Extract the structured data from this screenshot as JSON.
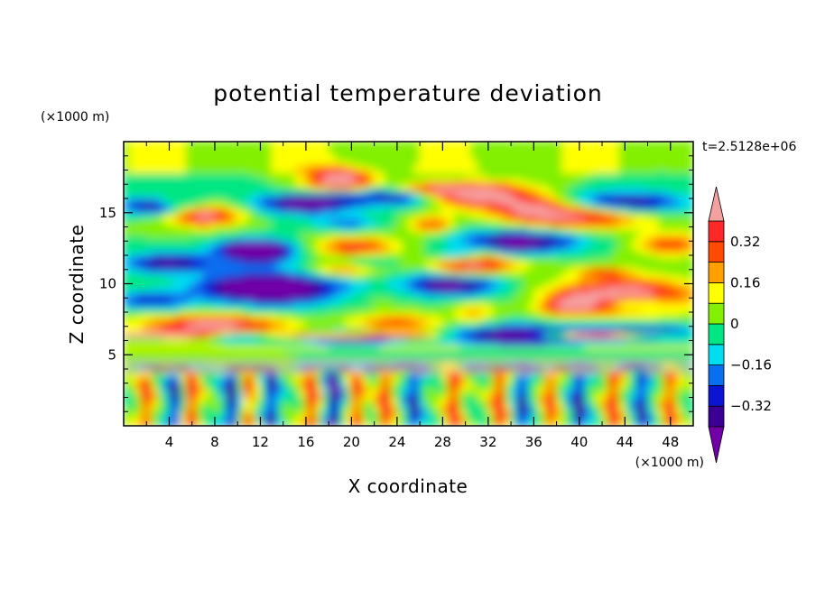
{
  "chart_data": {
    "type": "heatmap",
    "title": "potential temperature deviation",
    "xlabel": "X coordinate",
    "ylabel": "Z coordinate",
    "x_units": "(×1000 m)",
    "y_units": "(×1000 m)",
    "time_label": "t=2.5128e+06",
    "xlim": [
      0,
      50
    ],
    "ylim": [
      0,
      20
    ],
    "x_ticks": [
      "4",
      "8",
      "12",
      "16",
      "20",
      "24",
      "28",
      "32",
      "36",
      "40",
      "44",
      "48"
    ],
    "y_ticks": [
      "5",
      "10",
      "15"
    ],
    "colorbar": {
      "levels": [
        -0.4,
        -0.32,
        -0.24,
        -0.16,
        -0.08,
        0,
        0.08,
        0.16,
        0.24,
        0.32,
        0.4
      ],
      "labels": [
        "0.32",
        "0.16",
        "0",
        "−0.16",
        "−0.32"
      ],
      "label_values": [
        0.32,
        0.16,
        0,
        -0.16,
        -0.32
      ],
      "colors": [
        "#7200a8",
        "#3a0096",
        "#0a14d2",
        "#0a6ef0",
        "#00dcf0",
        "#00e682",
        "#82f000",
        "#ffff00",
        "#ffa000",
        "#ff4b00",
        "#ff2828",
        "#f5a0a0"
      ],
      "extend": "both"
    }
  }
}
